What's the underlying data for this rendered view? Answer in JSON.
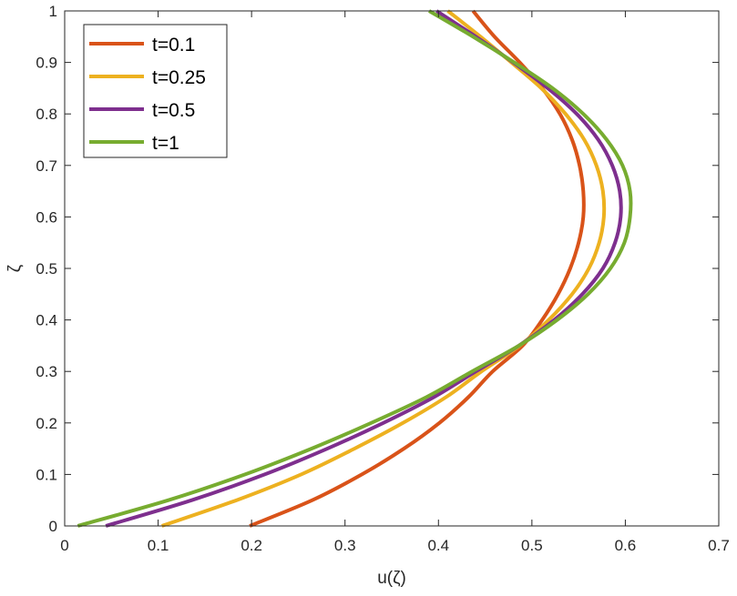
{
  "chart_data": {
    "type": "line",
    "xlabel": "u(ζ)",
    "ylabel": "ζ",
    "xlim": [
      0,
      0.7
    ],
    "ylim": [
      0,
      1
    ],
    "xticks": [
      "0",
      "0.1",
      "0.2",
      "0.3",
      "0.4",
      "0.5",
      "0.6",
      "0.7"
    ],
    "yticks": [
      "0",
      "0.1",
      "0.2",
      "0.3",
      "0.4",
      "0.5",
      "0.6",
      "0.7",
      "0.8",
      "0.9",
      "1"
    ],
    "grid": false,
    "legend_position": "top-left",
    "series": [
      {
        "name": "t=0.1",
        "color": "#D95319",
        "points": [
          [
            0.198,
            0
          ],
          [
            0.265,
            0.05
          ],
          [
            0.318,
            0.1
          ],
          [
            0.363,
            0.15
          ],
          [
            0.401,
            0.2
          ],
          [
            0.432,
            0.25
          ],
          [
            0.458,
            0.3
          ],
          [
            0.49,
            0.35
          ],
          [
            0.511,
            0.4
          ],
          [
            0.528,
            0.45
          ],
          [
            0.541,
            0.5
          ],
          [
            0.55,
            0.55
          ],
          [
            0.555,
            0.6
          ],
          [
            0.555,
            0.65
          ],
          [
            0.551,
            0.7
          ],
          [
            0.543,
            0.75
          ],
          [
            0.53,
            0.8
          ],
          [
            0.511,
            0.85
          ],
          [
            0.487,
            0.9
          ],
          [
            0.46,
            0.95
          ],
          [
            0.437,
            1
          ]
        ]
      },
      {
        "name": "t=0.25",
        "color": "#EDB120",
        "points": [
          [
            0.104,
            0
          ],
          [
            0.184,
            0.05
          ],
          [
            0.253,
            0.1
          ],
          [
            0.31,
            0.15
          ],
          [
            0.362,
            0.2
          ],
          [
            0.408,
            0.25
          ],
          [
            0.446,
            0.3
          ],
          [
            0.487,
            0.35
          ],
          [
            0.518,
            0.4
          ],
          [
            0.543,
            0.45
          ],
          [
            0.561,
            0.5
          ],
          [
            0.572,
            0.55
          ],
          [
            0.577,
            0.6
          ],
          [
            0.576,
            0.65
          ],
          [
            0.569,
            0.7
          ],
          [
            0.556,
            0.75
          ],
          [
            0.536,
            0.8
          ],
          [
            0.51,
            0.85
          ],
          [
            0.478,
            0.9
          ],
          [
            0.445,
            0.95
          ],
          [
            0.41,
            1
          ]
        ]
      },
      {
        "name": "t=0.5",
        "color": "#7E2F8E",
        "points": [
          [
            0.044,
            0
          ],
          [
            0.136,
            0.05
          ],
          [
            0.214,
            0.1
          ],
          [
            0.281,
            0.15
          ],
          [
            0.341,
            0.2
          ],
          [
            0.395,
            0.25
          ],
          [
            0.44,
            0.3
          ],
          [
            0.486,
            0.35
          ],
          [
            0.524,
            0.4
          ],
          [
            0.554,
            0.45
          ],
          [
            0.576,
            0.5
          ],
          [
            0.589,
            0.55
          ],
          [
            0.595,
            0.6
          ],
          [
            0.594,
            0.65
          ],
          [
            0.586,
            0.7
          ],
          [
            0.571,
            0.75
          ],
          [
            0.548,
            0.8
          ],
          [
            0.517,
            0.85
          ],
          [
            0.48,
            0.9
          ],
          [
            0.44,
            0.95
          ],
          [
            0.398,
            1
          ]
        ]
      },
      {
        "name": "t=1",
        "color": "#77AC30",
        "points": [
          [
            0.014,
            0
          ],
          [
            0.111,
            0.05
          ],
          [
            0.193,
            0.1
          ],
          [
            0.264,
            0.15
          ],
          [
            0.328,
            0.2
          ],
          [
            0.387,
            0.25
          ],
          [
            0.436,
            0.3
          ],
          [
            0.486,
            0.35
          ],
          [
            0.527,
            0.4
          ],
          [
            0.56,
            0.45
          ],
          [
            0.584,
            0.5
          ],
          [
            0.599,
            0.55
          ],
          [
            0.605,
            0.6
          ],
          [
            0.605,
            0.65
          ],
          [
            0.597,
            0.7
          ],
          [
            0.58,
            0.75
          ],
          [
            0.555,
            0.8
          ],
          [
            0.522,
            0.85
          ],
          [
            0.481,
            0.9
          ],
          [
            0.437,
            0.95
          ],
          [
            0.39,
            1
          ]
        ]
      }
    ]
  }
}
